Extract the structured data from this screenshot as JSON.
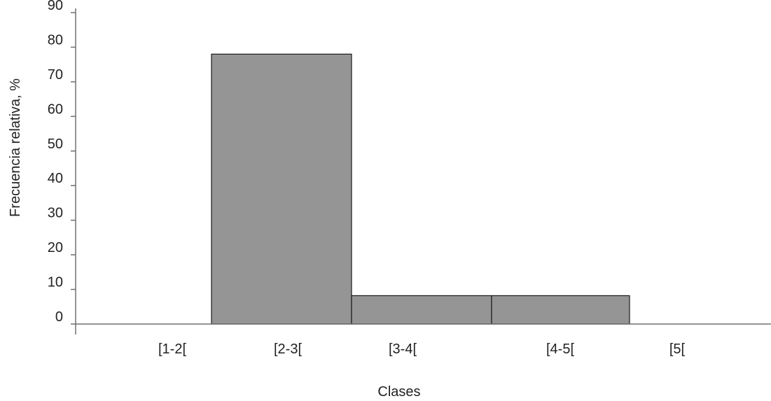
{
  "chart_data": {
    "type": "bar",
    "categories": [
      "[1-2[",
      "[2-3[",
      "[3-4[",
      "[4-5[",
      "[5["
    ],
    "values": [
      0,
      78,
      8.2,
      8.2,
      0
    ],
    "title": "",
    "xlabel": "Clases",
    "ylabel": "Frecuencia relativa, %",
    "ylim": [
      0,
      90
    ],
    "yticks": [
      "0",
      "10",
      "20",
      "30",
      "40",
      "50",
      "60",
      "70",
      "80",
      "90"
    ],
    "grid": false,
    "legend": "none",
    "bar_color": "#959595",
    "bar_edge_color": "#1a1a1a",
    "axis_color": "#707070"
  }
}
